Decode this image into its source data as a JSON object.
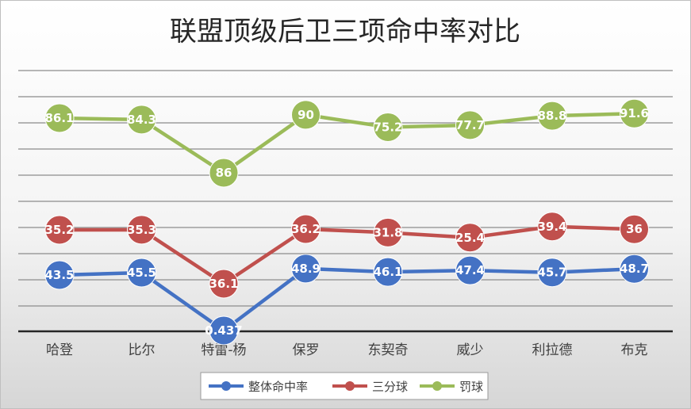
{
  "chart_data": {
    "type": "line",
    "title": "联盟顶级后卫三项命中率对比",
    "categories": [
      "哈登",
      "比尔",
      "特雷-杨",
      "保罗",
      "东契奇",
      "威少",
      "利拉德",
      "布克"
    ],
    "series": [
      {
        "name": "整体命中率",
        "color": "#4472c4",
        "values": [
          43.5,
          45.5,
          0.437,
          48.9,
          46.1,
          47.4,
          45.7,
          48.7
        ]
      },
      {
        "name": "三分球",
        "color": "#c0504d",
        "values": [
          35.2,
          35.3,
          36.1,
          36.2,
          31.8,
          25.4,
          39.4,
          36
        ]
      },
      {
        "name": "罚球",
        "color": "#9bbb59",
        "values": [
          86.1,
          84.3,
          86,
          90,
          75.2,
          77.7,
          88.8,
          91.6
        ]
      }
    ],
    "grid": true,
    "legend": "bottom",
    "ylabel": "",
    "xlabel": ""
  }
}
